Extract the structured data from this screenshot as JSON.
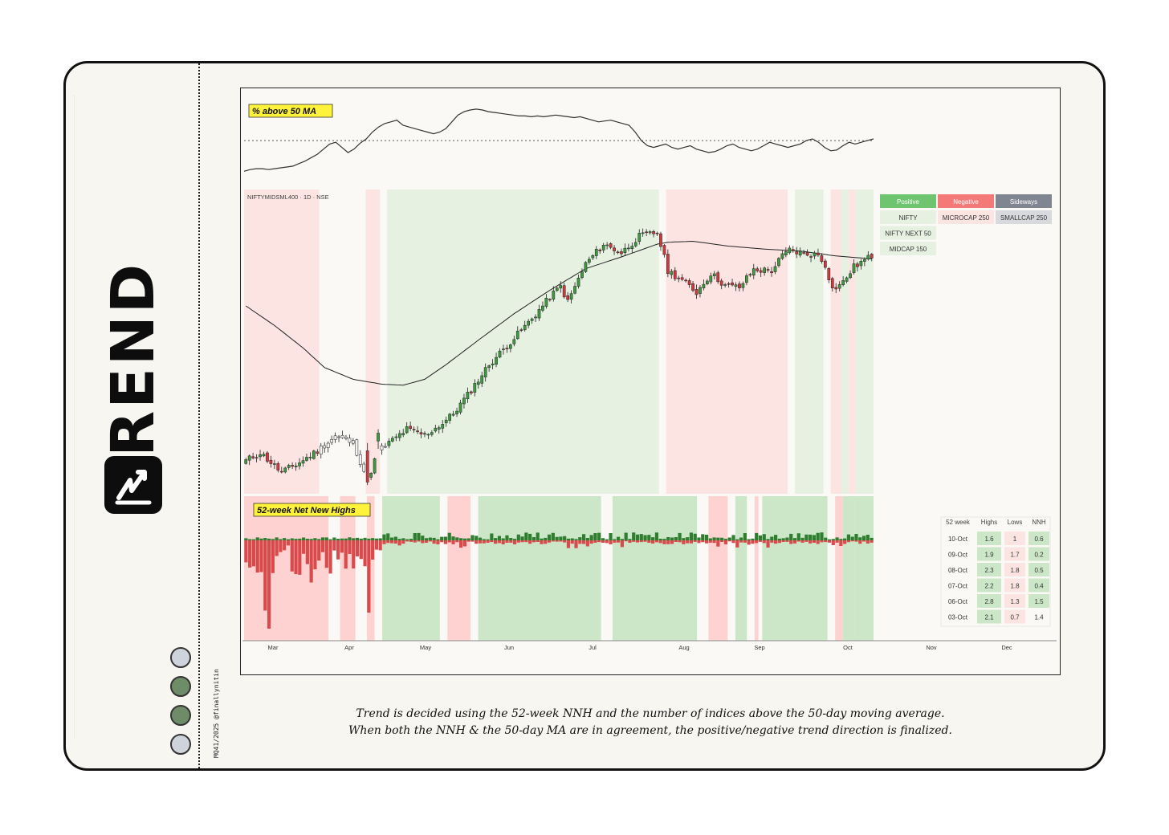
{
  "brand": {
    "title": "TREND",
    "credit": "MQ41/2025 @finallynitin"
  },
  "circles": [
    {
      "color": "#cfd3db"
    },
    {
      "color": "#6f8c68"
    },
    {
      "color": "#6f8c68"
    },
    {
      "color": "#cfd3db"
    }
  ],
  "caption": {
    "line1": "Trend is decided using the 52-week NNH and the number of indices above the 50-day moving average.",
    "line2": "When both the NNH & the 50-day MA are in agreement, the positive/negative trend direction is finalized."
  },
  "colors": {
    "up": "#3f9a3f",
    "down": "#d2383c",
    "positive_bg": "#e6f1e2",
    "negative_bg": "#fbe4e2",
    "positive_bg_strong": "#cbe7c8",
    "negative_bg_strong": "#fdd2d0",
    "label_bg": "#fff23a"
  },
  "chart_data": [
    {
      "type": "line",
      "label": "% above 50 MA",
      "reference_line": "dotted",
      "values": [
        12,
        14,
        15,
        15,
        14,
        15,
        16,
        17,
        18,
        21,
        24,
        28,
        32,
        38,
        44,
        46,
        40,
        34,
        38,
        45,
        50,
        58,
        64,
        68,
        70,
        72,
        66,
        64,
        62,
        60,
        58,
        56,
        58,
        62,
        70,
        78,
        82,
        84,
        85,
        84,
        82,
        81,
        80,
        79,
        78,
        77,
        77,
        76,
        77,
        76,
        77,
        78,
        77,
        76,
        75,
        76,
        74,
        72,
        70,
        71,
        72,
        70,
        68,
        66,
        58,
        48,
        42,
        40,
        42,
        44,
        40,
        38,
        40,
        42,
        38,
        36,
        34,
        35,
        38,
        42,
        44,
        40,
        38,
        36,
        38,
        42,
        46,
        44,
        42,
        40,
        42,
        44,
        48,
        50,
        46,
        40,
        36,
        37,
        42,
        46,
        44,
        46,
        48,
        50
      ]
    },
    {
      "type": "candlestick",
      "title": "NIFTYMIDSML400 · 1D · NSE",
      "overlay": "50-day moving average",
      "y_scale": "price (unlabeled)",
      "ma": [],
      "candles": []
    },
    {
      "type": "bar",
      "label": "52-week Net New Highs",
      "series": [
        {
          "values": []
        }
      ]
    }
  ],
  "status_table": {
    "headers": [
      "Positive",
      "Negative",
      "Sideways"
    ],
    "columns": [
      [
        "NIFTY",
        "NIFTY NEXT 50",
        "MIDCAP 150"
      ],
      [
        "MICROCAP 250"
      ],
      [
        "SMALLCAP 250"
      ]
    ]
  },
  "nnh_table": {
    "headers": [
      "52 week",
      "Highs",
      "Lows",
      "NNH"
    ],
    "rows": [
      {
        "date": "10-Oct",
        "highs": "1.6",
        "lows": "1",
        "nnh": "0.6"
      },
      {
        "date": "09-Oct",
        "highs": "1.9",
        "lows": "1.7",
        "nnh": "0.2"
      },
      {
        "date": "08-Oct",
        "highs": "2.3",
        "lows": "1.8",
        "nnh": "0.5"
      },
      {
        "date": "07-Oct",
        "highs": "2.2",
        "lows": "1.8",
        "nnh": "0.4"
      },
      {
        "date": "06-Oct",
        "highs": "2.8",
        "lows": "1.3",
        "nnh": "1.5"
      },
      {
        "date": "03-Oct",
        "highs": "2.1",
        "lows": "0.7",
        "nnh": "1.4"
      }
    ]
  },
  "x_axis": {
    "months": [
      "Mar",
      "Apr",
      "May",
      "Jun",
      "Jul",
      "Aug",
      "Sep",
      "Oct",
      "Nov",
      "Dec"
    ]
  },
  "regimes": [
    {
      "state": "negative",
      "from": 0,
      "to": 21
    },
    {
      "state": "neutral",
      "from": 21,
      "to": 34
    },
    {
      "state": "negative",
      "from": 34,
      "to": 38
    },
    {
      "state": "neutral",
      "from": 38,
      "to": 40
    },
    {
      "state": "positive",
      "from": 40,
      "to": 116
    },
    {
      "state": "neutral",
      "from": 116,
      "to": 118
    },
    {
      "state": "negative",
      "from": 118,
      "to": 152
    },
    {
      "state": "neutral",
      "from": 152,
      "to": 154
    },
    {
      "state": "positive",
      "from": 154,
      "to": 162
    },
    {
      "state": "neutral",
      "from": 162,
      "to": 164
    },
    {
      "state": "negative",
      "from": 164,
      "to": 167
    },
    {
      "state": "positive",
      "from": 167,
      "to": 169
    },
    {
      "state": "negative",
      "from": 169,
      "to": 171
    },
    {
      "state": "positive",
      "from": 171,
      "to": 176
    }
  ],
  "nnh_regimes": [
    {
      "state": "negative",
      "from": 0,
      "to": 22
    },
    {
      "state": "neutral",
      "from": 22,
      "to": 25
    },
    {
      "state": "negative",
      "from": 25,
      "to": 29
    },
    {
      "state": "neutral",
      "from": 29,
      "to": 32
    },
    {
      "state": "negative",
      "from": 32,
      "to": 34
    },
    {
      "state": "neutral",
      "from": 34,
      "to": 36
    },
    {
      "state": "positive",
      "from": 36,
      "to": 51
    },
    {
      "state": "neutral",
      "from": 51,
      "to": 53
    },
    {
      "state": "negative",
      "from": 53,
      "to": 59
    },
    {
      "state": "neutral",
      "from": 59,
      "to": 61
    },
    {
      "state": "positive",
      "from": 61,
      "to": 93
    },
    {
      "state": "neutral",
      "from": 93,
      "to": 96
    },
    {
      "state": "positive",
      "from": 96,
      "to": 118
    },
    {
      "state": "neutral",
      "from": 118,
      "to": 121
    },
    {
      "state": "negative",
      "from": 121,
      "to": 126
    },
    {
      "state": "neutral",
      "from": 126,
      "to": 128
    },
    {
      "state": "positive",
      "from": 128,
      "to": 131
    },
    {
      "state": "neutral",
      "from": 131,
      "to": 133
    },
    {
      "state": "negative",
      "from": 133,
      "to": 134
    },
    {
      "state": "neutral",
      "from": 134,
      "to": 135
    },
    {
      "state": "positive",
      "from": 135,
      "to": 152
    },
    {
      "state": "neutral",
      "from": 152,
      "to": 154
    },
    {
      "state": "negative",
      "from": 154,
      "to": 156
    },
    {
      "state": "positive",
      "from": 156,
      "to": 159
    },
    {
      "state": "positive",
      "from": 159,
      "to": 164
    }
  ]
}
